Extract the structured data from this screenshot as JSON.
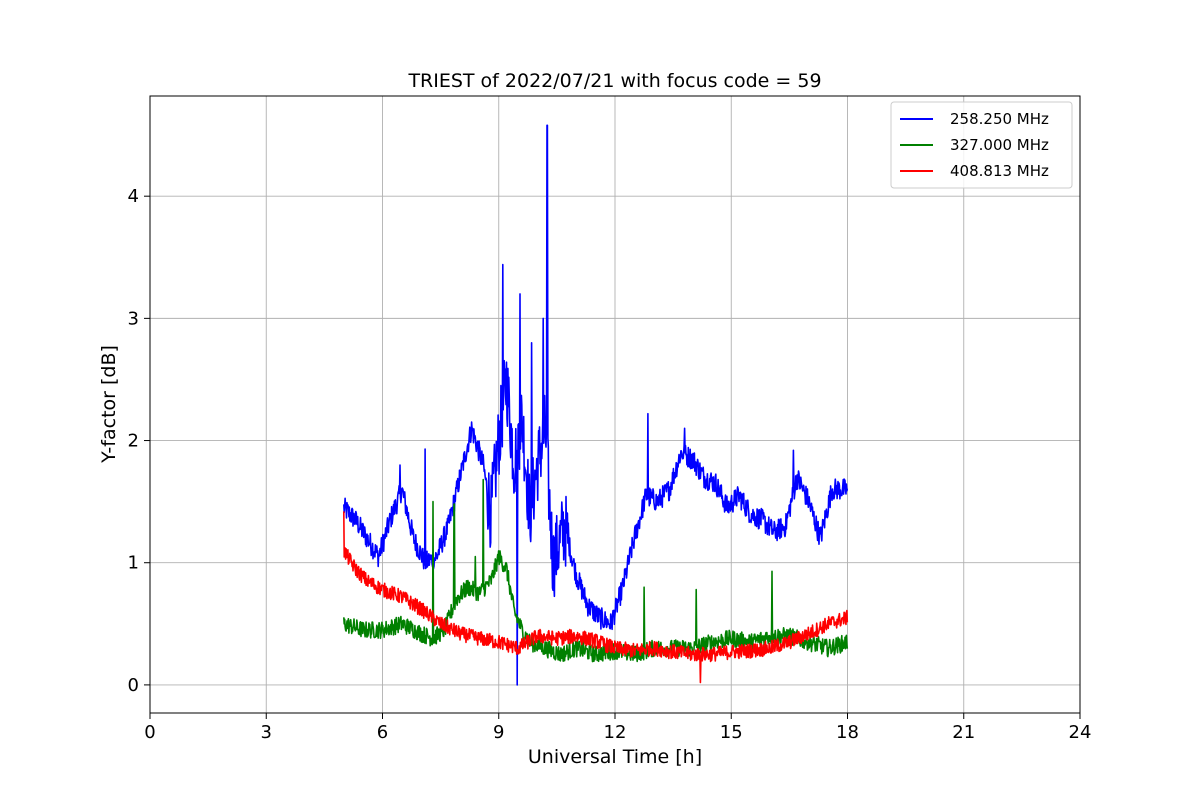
{
  "chart_data": {
    "type": "line",
    "title": "TRIEST of 2022/07/21 with focus code = 59",
    "xlabel": "Universal Time [h]",
    "ylabel": "Y-factor [dB]",
    "xlim": [
      0,
      24
    ],
    "ylim": [
      -0.23,
      4.82
    ],
    "xticks": [
      0,
      3,
      6,
      9,
      12,
      15,
      18,
      21,
      24
    ],
    "yticks": [
      0,
      1,
      2,
      3,
      4
    ],
    "grid": true,
    "legend_position": "top-right",
    "series": [
      {
        "name": "258.250 MHz",
        "color": "#0000ff",
        "noise": 0.09,
        "x": [
          5.0,
          5.3,
          5.6,
          5.9,
          6.2,
          6.5,
          6.8,
          7.1,
          7.4,
          7.7,
          8.0,
          8.3,
          8.6,
          8.8,
          9.0,
          9.2,
          9.4,
          9.6,
          9.8,
          10.0,
          10.2,
          10.4,
          10.7,
          11.0,
          11.3,
          11.6,
          11.9,
          12.2,
          12.5,
          12.8,
          13.1,
          13.4,
          13.7,
          14.0,
          14.3,
          14.6,
          14.9,
          15.2,
          15.5,
          15.8,
          16.1,
          16.4,
          16.7,
          17.0,
          17.3,
          17.6,
          18.0
        ],
        "y": [
          1.45,
          1.35,
          1.2,
          1.05,
          1.35,
          1.6,
          1.2,
          1.0,
          1.05,
          1.3,
          1.7,
          2.1,
          1.8,
          1.4,
          2.0,
          2.5,
          1.8,
          2.2,
          1.4,
          1.8,
          2.1,
          1.0,
          1.3,
          0.9,
          0.65,
          0.55,
          0.5,
          0.8,
          1.2,
          1.55,
          1.5,
          1.6,
          1.9,
          1.85,
          1.7,
          1.65,
          1.45,
          1.55,
          1.4,
          1.35,
          1.25,
          1.3,
          1.7,
          1.5,
          1.2,
          1.6,
          1.6
        ],
        "spikes": [
          [
            10.25,
            4.58
          ],
          [
            9.1,
            3.44
          ],
          [
            9.55,
            3.2
          ],
          [
            10.15,
            3.0
          ],
          [
            9.85,
            2.8
          ],
          [
            7.1,
            1.93
          ],
          [
            12.85,
            2.22
          ],
          [
            13.8,
            2.1
          ],
          [
            9.48,
            0.0
          ],
          [
            16.6,
            1.92
          ],
          [
            6.45,
            1.8
          ]
        ]
      },
      {
        "name": "327.000 MHz",
        "color": "#008000",
        "noise": 0.07,
        "x": [
          5.0,
          5.5,
          6.0,
          6.5,
          7.0,
          7.3,
          7.6,
          7.9,
          8.2,
          8.5,
          8.8,
          9.0,
          9.2,
          9.4,
          9.6,
          9.8,
          10.2,
          10.6,
          11.0,
          11.5,
          12.0,
          12.5,
          13.0,
          13.5,
          14.0,
          14.5,
          15.0,
          15.5,
          16.0,
          16.5,
          17.0,
          17.5,
          18.0
        ],
        "y": [
          0.5,
          0.45,
          0.45,
          0.5,
          0.42,
          0.38,
          0.45,
          0.7,
          0.8,
          0.75,
          0.85,
          1.05,
          0.95,
          0.6,
          0.45,
          0.35,
          0.3,
          0.25,
          0.3,
          0.25,
          0.28,
          0.25,
          0.3,
          0.3,
          0.3,
          0.35,
          0.38,
          0.35,
          0.4,
          0.4,
          0.35,
          0.3,
          0.35
        ],
        "spikes": [
          [
            8.6,
            1.68
          ],
          [
            7.3,
            1.5
          ],
          [
            7.85,
            1.48
          ],
          [
            16.05,
            0.93
          ],
          [
            14.1,
            0.78
          ],
          [
            12.75,
            0.8
          ],
          [
            8.4,
            1.05
          ]
        ]
      },
      {
        "name": "408.813 MHz",
        "color": "#ff0000",
        "noise": 0.06,
        "x": [
          5.0,
          5.3,
          5.6,
          6.0,
          6.5,
          7.0,
          7.5,
          8.0,
          8.5,
          9.0,
          9.5,
          10.0,
          10.5,
          11.0,
          11.5,
          12.0,
          12.5,
          13.0,
          13.5,
          14.0,
          14.5,
          15.0,
          15.5,
          16.0,
          16.5,
          17.0,
          17.5,
          18.0
        ],
        "y": [
          1.1,
          0.95,
          0.85,
          0.78,
          0.72,
          0.62,
          0.5,
          0.42,
          0.38,
          0.35,
          0.3,
          0.4,
          0.38,
          0.4,
          0.36,
          0.3,
          0.28,
          0.3,
          0.27,
          0.25,
          0.25,
          0.27,
          0.28,
          0.3,
          0.35,
          0.42,
          0.5,
          0.55
        ],
        "spikes": [
          [
            5.0,
            1.42
          ],
          [
            14.2,
            0.02
          ]
        ]
      }
    ]
  }
}
